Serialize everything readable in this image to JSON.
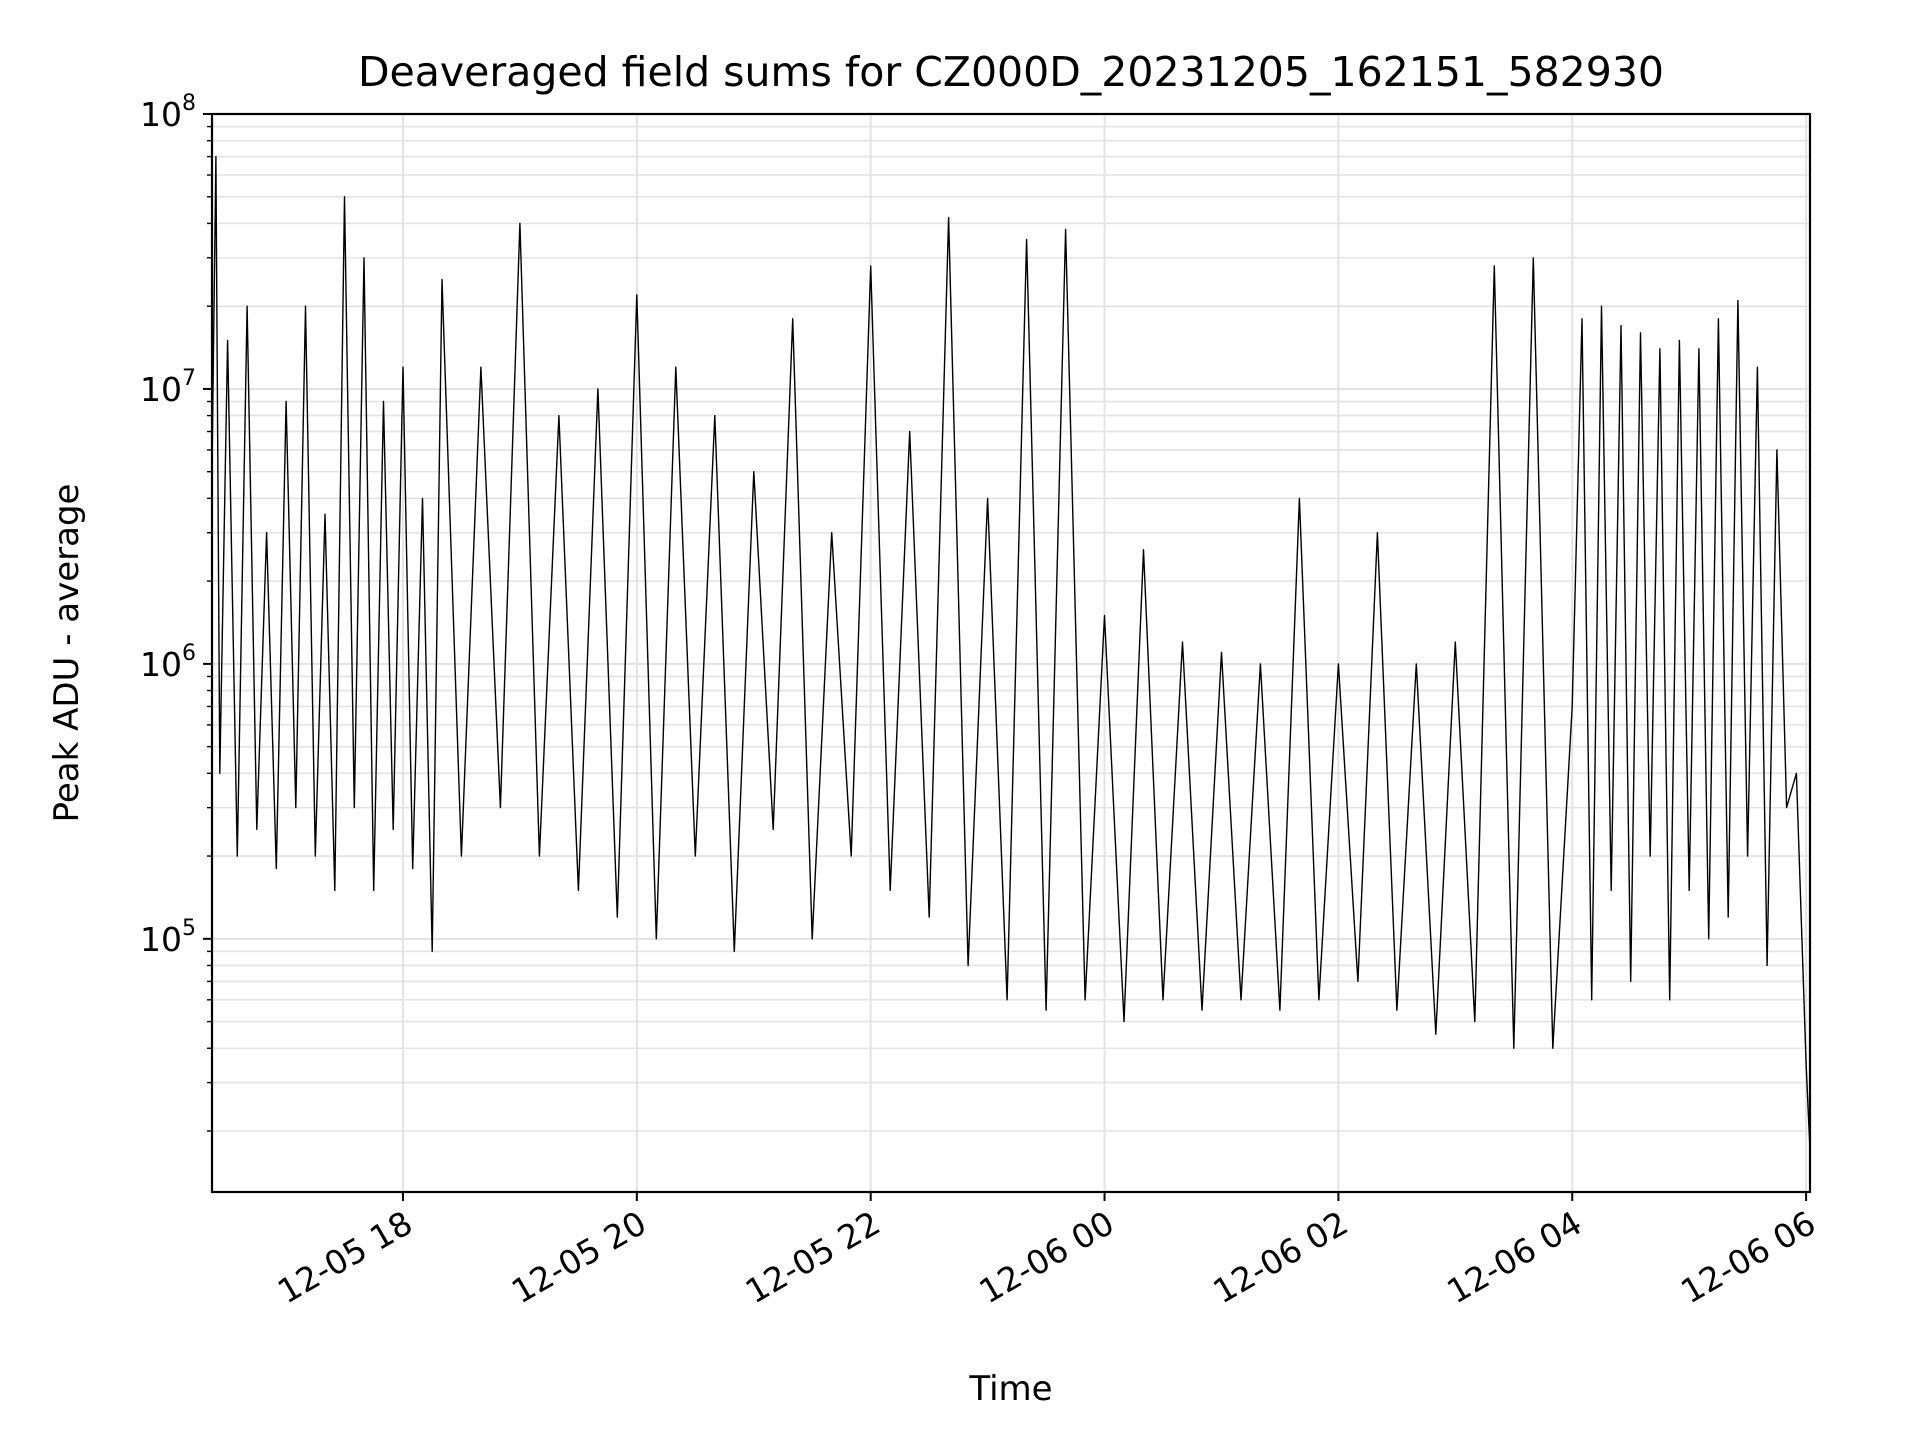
{
  "chart_data": {
    "type": "line",
    "title": "Deaveraged field sums for CZ000D_20231205_162151_582930",
    "xlabel": "Time",
    "ylabel": "Peak ADU - average",
    "yscale": "log",
    "xlim": [
      "2023-12-05 16:22",
      "2023-12-06 06:02"
    ],
    "ylim": [
      12000,
      100000000
    ],
    "grid": true,
    "x_ticks": [
      "12-05 18",
      "12-05 20",
      "12-05 22",
      "12-06 00",
      "12-06 02",
      "12-06 04",
      "12-06 06"
    ],
    "y_ticks": [
      {
        "base": "10",
        "exp": "5",
        "value": 100000
      },
      {
        "base": "10",
        "exp": "6",
        "value": 1000000
      },
      {
        "base": "10",
        "exp": "7",
        "value": 10000000
      },
      {
        "base": "10",
        "exp": "8",
        "value": 100000000
      }
    ],
    "series": [
      {
        "color": "#000000",
        "x": [
          "2023-12-05 16:22",
          "2023-12-05 16:24",
          "2023-12-05 16:26",
          "2023-12-05 16:30",
          "2023-12-05 16:35",
          "2023-12-05 16:40",
          "2023-12-05 16:45",
          "2023-12-05 16:50",
          "2023-12-05 16:55",
          "2023-12-05 17:00",
          "2023-12-05 17:05",
          "2023-12-05 17:10",
          "2023-12-05 17:15",
          "2023-12-05 17:20",
          "2023-12-05 17:25",
          "2023-12-05 17:30",
          "2023-12-05 17:35",
          "2023-12-05 17:40",
          "2023-12-05 17:45",
          "2023-12-05 17:50",
          "2023-12-05 17:55",
          "2023-12-05 18:00",
          "2023-12-05 18:05",
          "2023-12-05 18:10",
          "2023-12-05 18:15",
          "2023-12-05 18:20",
          "2023-12-05 18:30",
          "2023-12-05 18:40",
          "2023-12-05 18:50",
          "2023-12-05 19:00",
          "2023-12-05 19:10",
          "2023-12-05 19:20",
          "2023-12-05 19:30",
          "2023-12-05 19:40",
          "2023-12-05 19:50",
          "2023-12-05 20:00",
          "2023-12-05 20:10",
          "2023-12-05 20:20",
          "2023-12-05 20:30",
          "2023-12-05 20:40",
          "2023-12-05 20:50",
          "2023-12-05 21:00",
          "2023-12-05 21:10",
          "2023-12-05 21:20",
          "2023-12-05 21:30",
          "2023-12-05 21:40",
          "2023-12-05 21:50",
          "2023-12-05 22:00",
          "2023-12-05 22:10",
          "2023-12-05 22:20",
          "2023-12-05 22:30",
          "2023-12-05 22:40",
          "2023-12-05 22:50",
          "2023-12-05 23:00",
          "2023-12-05 23:10",
          "2023-12-05 23:20",
          "2023-12-05 23:30",
          "2023-12-05 23:40",
          "2023-12-05 23:50",
          "2023-12-06 00:00",
          "2023-12-06 00:10",
          "2023-12-06 00:20",
          "2023-12-06 00:30",
          "2023-12-06 00:40",
          "2023-12-06 00:50",
          "2023-12-06 01:00",
          "2023-12-06 01:10",
          "2023-12-06 01:20",
          "2023-12-06 01:30",
          "2023-12-06 01:40",
          "2023-12-06 01:50",
          "2023-12-06 02:00",
          "2023-12-06 02:10",
          "2023-12-06 02:20",
          "2023-12-06 02:30",
          "2023-12-06 02:40",
          "2023-12-06 02:50",
          "2023-12-06 03:00",
          "2023-12-06 03:10",
          "2023-12-06 03:20",
          "2023-12-06 03:30",
          "2023-12-06 03:40",
          "2023-12-06 03:50",
          "2023-12-06 04:00",
          "2023-12-06 04:05",
          "2023-12-06 04:10",
          "2023-12-06 04:15",
          "2023-12-06 04:20",
          "2023-12-06 04:25",
          "2023-12-06 04:30",
          "2023-12-06 04:35",
          "2023-12-06 04:40",
          "2023-12-06 04:45",
          "2023-12-06 04:50",
          "2023-12-06 04:55",
          "2023-12-06 05:00",
          "2023-12-06 05:05",
          "2023-12-06 05:10",
          "2023-12-06 05:15",
          "2023-12-06 05:20",
          "2023-12-06 05:25",
          "2023-12-06 05:30",
          "2023-12-06 05:35",
          "2023-12-06 05:40",
          "2023-12-06 05:45",
          "2023-12-06 05:50",
          "2023-12-06 05:55",
          "2023-12-06 06:00",
          "2023-12-06 06:02"
        ],
        "y": [
          5000000,
          70000000,
          400000,
          15000000,
          200000,
          20000000,
          250000,
          3000000,
          180000,
          9000000,
          300000,
          20000000,
          200000,
          3500000,
          150000,
          50000000,
          300000,
          30000000,
          150000,
          9000000,
          250000,
          12000000,
          180000,
          4000000,
          90000,
          25000000,
          200000,
          12000000,
          300000,
          40000000,
          200000,
          8000000,
          150000,
          10000000,
          120000,
          22000000,
          100000,
          12000000,
          200000,
          8000000,
          90000,
          5000000,
          250000,
          18000000,
          100000,
          3000000,
          200000,
          28000000,
          150000,
          7000000,
          120000,
          42000000,
          80000,
          4000000,
          60000,
          35000000,
          55000,
          38000000,
          60000,
          1500000,
          50000,
          2600000,
          60000,
          1200000,
          55000,
          1100000,
          60000,
          1000000,
          55000,
          4000000,
          60000,
          1000000,
          70000,
          3000000,
          55000,
          1000000,
          45000,
          1200000,
          50000,
          28000000,
          40000,
          30000000,
          40000,
          700000,
          18000000,
          60000,
          20000000,
          150000,
          17000000,
          70000,
          16000000,
          200000,
          14000000,
          60000,
          15000000,
          150000,
          14000000,
          100000,
          18000000,
          120000,
          21000000,
          200000,
          12000000,
          80000,
          6000000,
          300000,
          400000,
          35000,
          17000
        ]
      }
    ]
  }
}
